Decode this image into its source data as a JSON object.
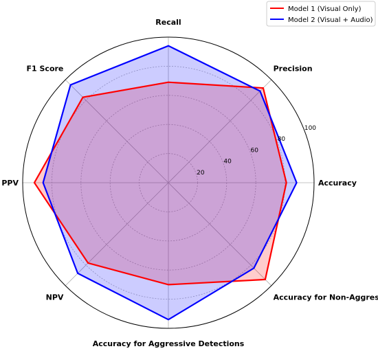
{
  "chart_data": {
    "type": "radar",
    "axes": [
      "Accuracy",
      "Precision",
      "Recall",
      "F1 Score",
      "PPV",
      "NPV",
      "Accuracy for Aggressive Detections",
      "Accuracy for Non-Aggressive Detections"
    ],
    "rmax": 100,
    "rticks": [
      20,
      40,
      60,
      80,
      100
    ],
    "grid": true,
    "legend_position": "top-right",
    "series": [
      {
        "name": "Model 1 (Visual Only)",
        "color": "#ff0000",
        "fill": "#ff0000",
        "values": [
          81,
          92,
          69,
          83,
          92,
          78,
          70,
          94
        ]
      },
      {
        "name": "Model 2 (Visual + Audio)",
        "color": "#0000ff",
        "fill": "#0000ff",
        "values": [
          88,
          89,
          94,
          95,
          86,
          88,
          94,
          83
        ]
      }
    ]
  }
}
